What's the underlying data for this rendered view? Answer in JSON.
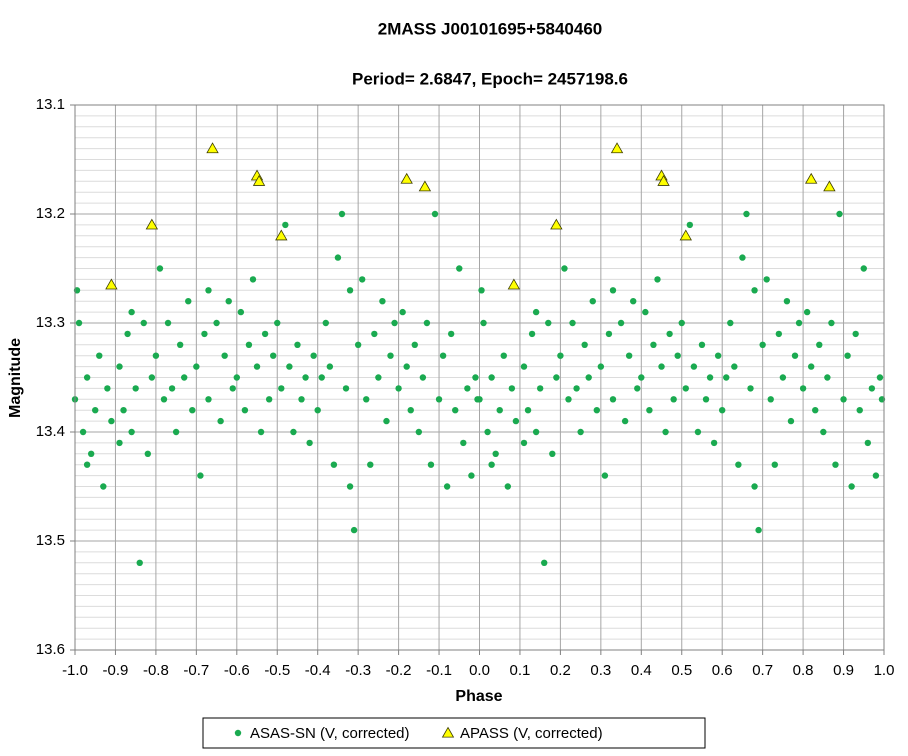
{
  "chart_data": {
    "type": "scatter",
    "title": "2MASS  J00101695+5840460",
    "subtitle": "Period=  2.6847,  Epoch=  2457198.6",
    "x_label": "Phase",
    "y_label": "Magnitude",
    "xlim": [
      -1,
      1
    ],
    "xticks": [
      {
        "value": -1,
        "label": "-1.0"
      },
      -0.9,
      -0.8,
      -0.7,
      -0.6,
      -0.5,
      -0.4,
      -0.3,
      -0.2,
      -0.1,
      {
        "value": 0,
        "label": "0.0"
      },
      0.1,
      0.2,
      0.3,
      0.4,
      0.5,
      0.6,
      0.7,
      0.8,
      0.9,
      {
        "value": 1,
        "label": "1.0"
      }
    ],
    "ylim": [
      13.1,
      13.6
    ],
    "y_inverted": true,
    "yticks": [
      13.1,
      13.2,
      13.3,
      13.4,
      13.5,
      13.6
    ],
    "grid": true,
    "legend": "bottom",
    "series": [
      {
        "name": "ASAS-SN (V, corrected)",
        "marker": "circle",
        "color": "#1aaa50",
        "x": [
          -1.0,
          -0.995,
          -0.99,
          -0.98,
          -0.97,
          -0.97,
          -0.96,
          -0.95,
          -0.94,
          -0.93,
          -0.92,
          -0.91,
          -0.89,
          -0.89,
          -0.88,
          -0.87,
          -0.86,
          -0.86,
          -0.85,
          -0.84,
          -0.83,
          -0.82,
          -0.81,
          -0.8,
          -0.79,
          -0.78,
          -0.77,
          -0.76,
          -0.75,
          -0.74,
          -0.73,
          -0.72,
          -0.71,
          -0.7,
          -0.69,
          -0.68,
          -0.67,
          -0.67,
          -0.65,
          -0.64,
          -0.63,
          -0.62,
          -0.61,
          -0.6,
          -0.59,
          -0.58,
          -0.57,
          -0.56,
          -0.55,
          -0.54,
          -0.53,
          -0.52,
          -0.51,
          -0.5,
          -0.49,
          -0.48,
          -0.47,
          -0.46,
          -0.45,
          -0.44,
          -0.43,
          -0.42,
          -0.41,
          -0.4,
          -0.39,
          -0.38,
          -0.37,
          -0.36,
          -0.35,
          -0.34,
          -0.33,
          -0.32,
          -0.32,
          -0.31,
          -0.3,
          -0.29,
          -0.28,
          -0.27,
          -0.26,
          -0.25,
          -0.24,
          -0.23,
          -0.22,
          -0.21,
          -0.2,
          -0.19,
          -0.18,
          -0.17,
          -0.16,
          -0.15,
          -0.14,
          -0.13,
          -0.12,
          -0.11,
          -0.1,
          -0.09,
          -0.08,
          -0.07,
          -0.06,
          -0.05,
          -0.04,
          -0.03,
          -0.02,
          -0.01,
          -0.005,
          0.0,
          0.005,
          0.01,
          0.02,
          0.03,
          0.03,
          0.04,
          0.05,
          0.06,
          0.07,
          0.08,
          0.09,
          0.11,
          0.11,
          0.12,
          0.13,
          0.14,
          0.14,
          0.15,
          0.16,
          0.17,
          0.18,
          0.19,
          0.2,
          0.21,
          0.22,
          0.23,
          0.24,
          0.25,
          0.26,
          0.27,
          0.28,
          0.29,
          0.3,
          0.31,
          0.32,
          0.33,
          0.33,
          0.35,
          0.36,
          0.37,
          0.38,
          0.39,
          0.4,
          0.41,
          0.42,
          0.43,
          0.44,
          0.45,
          0.46,
          0.47,
          0.48,
          0.49,
          0.5,
          0.51,
          0.52,
          0.53,
          0.54,
          0.55,
          0.56,
          0.57,
          0.58,
          0.59,
          0.6,
          0.61,
          0.62,
          0.63,
          0.64,
          0.65,
          0.66,
          0.67,
          0.68,
          0.68,
          0.69,
          0.7,
          0.71,
          0.72,
          0.73,
          0.74,
          0.75,
          0.76,
          0.77,
          0.78,
          0.79,
          0.8,
          0.81,
          0.82,
          0.83,
          0.84,
          0.85,
          0.86,
          0.87,
          0.88,
          0.89,
          0.9,
          0.91,
          0.92,
          0.93,
          0.94,
          0.95,
          0.96,
          0.97,
          0.98,
          0.99,
          0.995
        ],
        "values": [
          13.37,
          13.27,
          13.3,
          13.4,
          13.35,
          13.43,
          13.42,
          13.38,
          13.33,
          13.45,
          13.36,
          13.39,
          13.34,
          13.41,
          13.38,
          13.31,
          13.4,
          13.29,
          13.36,
          13.52,
          13.3,
          13.42,
          13.35,
          13.33,
          13.25,
          13.37,
          13.3,
          13.36,
          13.4,
          13.32,
          13.35,
          13.28,
          13.38,
          13.34,
          13.44,
          13.31,
          13.37,
          13.27,
          13.3,
          13.39,
          13.33,
          13.28,
          13.36,
          13.35,
          13.29,
          13.38,
          13.32,
          13.26,
          13.34,
          13.4,
          13.31,
          13.37,
          13.33,
          13.3,
          13.36,
          13.21,
          13.34,
          13.4,
          13.32,
          13.37,
          13.35,
          13.41,
          13.33,
          13.38,
          13.35,
          13.3,
          13.34,
          13.43,
          13.24,
          13.2,
          13.36,
          13.45,
          13.27,
          13.49,
          13.32,
          13.26,
          13.37,
          13.43,
          13.31,
          13.35,
          13.28,
          13.39,
          13.33,
          13.3,
          13.36,
          13.29,
          13.34,
          13.38,
          13.32,
          13.4,
          13.35,
          13.3,
          13.43,
          13.2,
          13.37,
          13.33,
          13.45,
          13.31,
          13.38,
          13.25,
          13.41,
          13.36,
          13.44,
          13.35,
          13.37,
          13.37,
          13.27,
          13.3,
          13.4,
          13.35,
          13.43,
          13.42,
          13.38,
          13.33,
          13.45,
          13.36,
          13.39,
          13.34,
          13.41,
          13.38,
          13.31,
          13.4,
          13.29,
          13.36,
          13.52,
          13.3,
          13.42,
          13.35,
          13.33,
          13.25,
          13.37,
          13.3,
          13.36,
          13.4,
          13.32,
          13.35,
          13.28,
          13.38,
          13.34,
          13.44,
          13.31,
          13.37,
          13.27,
          13.3,
          13.39,
          13.33,
          13.28,
          13.36,
          13.35,
          13.29,
          13.38,
          13.32,
          13.26,
          13.34,
          13.4,
          13.31,
          13.37,
          13.33,
          13.3,
          13.36,
          13.21,
          13.34,
          13.4,
          13.32,
          13.37,
          13.35,
          13.41,
          13.33,
          13.38,
          13.35,
          13.3,
          13.34,
          13.43,
          13.24,
          13.2,
          13.36,
          13.45,
          13.27,
          13.49,
          13.32,
          13.26,
          13.37,
          13.43,
          13.31,
          13.35,
          13.28,
          13.39,
          13.33,
          13.3,
          13.36,
          13.29,
          13.34,
          13.38,
          13.32,
          13.4,
          13.35,
          13.3,
          13.43,
          13.2,
          13.37,
          13.33,
          13.45,
          13.31,
          13.38,
          13.25,
          13.41,
          13.36,
          13.44,
          13.35,
          13.37
        ]
      },
      {
        "name": "APASS (V, corrected)",
        "marker": "triangle",
        "color": "#ffff00",
        "x": [
          -0.91,
          -0.81,
          -0.66,
          -0.55,
          -0.545,
          -0.49,
          -0.18,
          -0.135,
          0.085,
          0.19,
          0.34,
          0.45,
          0.455,
          0.51,
          0.82,
          0.865
        ],
        "values": [
          13.265,
          13.21,
          13.14,
          13.165,
          13.17,
          13.22,
          13.168,
          13.175,
          13.265,
          13.21,
          13.14,
          13.165,
          13.17,
          13.22,
          13.168,
          13.175
        ]
      }
    ]
  }
}
